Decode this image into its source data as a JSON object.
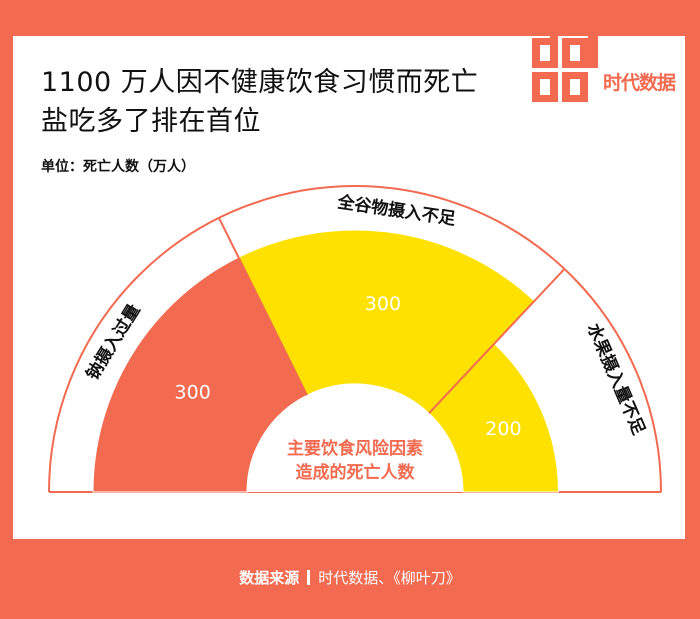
{
  "header": {
    "title_line1": "1100 万人因不健康饮食习惯而死亡",
    "title_line2": "盐吃多了排在首位",
    "unit": "单位：死亡人数（万人）"
  },
  "brand": {
    "logo_text": "时代数据",
    "logo_mark": "data"
  },
  "footer": {
    "source_label": "数据来源",
    "source_text": "时代数据、《柳叶刀》"
  },
  "colors": {
    "frame": "#f26a50",
    "sodium": "#f26a50",
    "grain": "#ffe100",
    "fruit": "#ffe100",
    "center_text": "#f26a50"
  },
  "chart_data": {
    "type": "pie",
    "subtype": "semicircle",
    "title": "1100 万人因不健康饮食习惯而死亡",
    "subtitle": "盐吃多了排在首位",
    "unit": "单位：死亡人数（万人）",
    "center_label": [
      "主要饮食风险因素",
      "造成的死亡人数"
    ],
    "categories": [
      "钠摄入过量",
      "全谷物摄入不足",
      "水果摄入量不足"
    ],
    "values": [
      300,
      300,
      200
    ],
    "data_labels": [
      "300",
      "300",
      "200"
    ]
  }
}
